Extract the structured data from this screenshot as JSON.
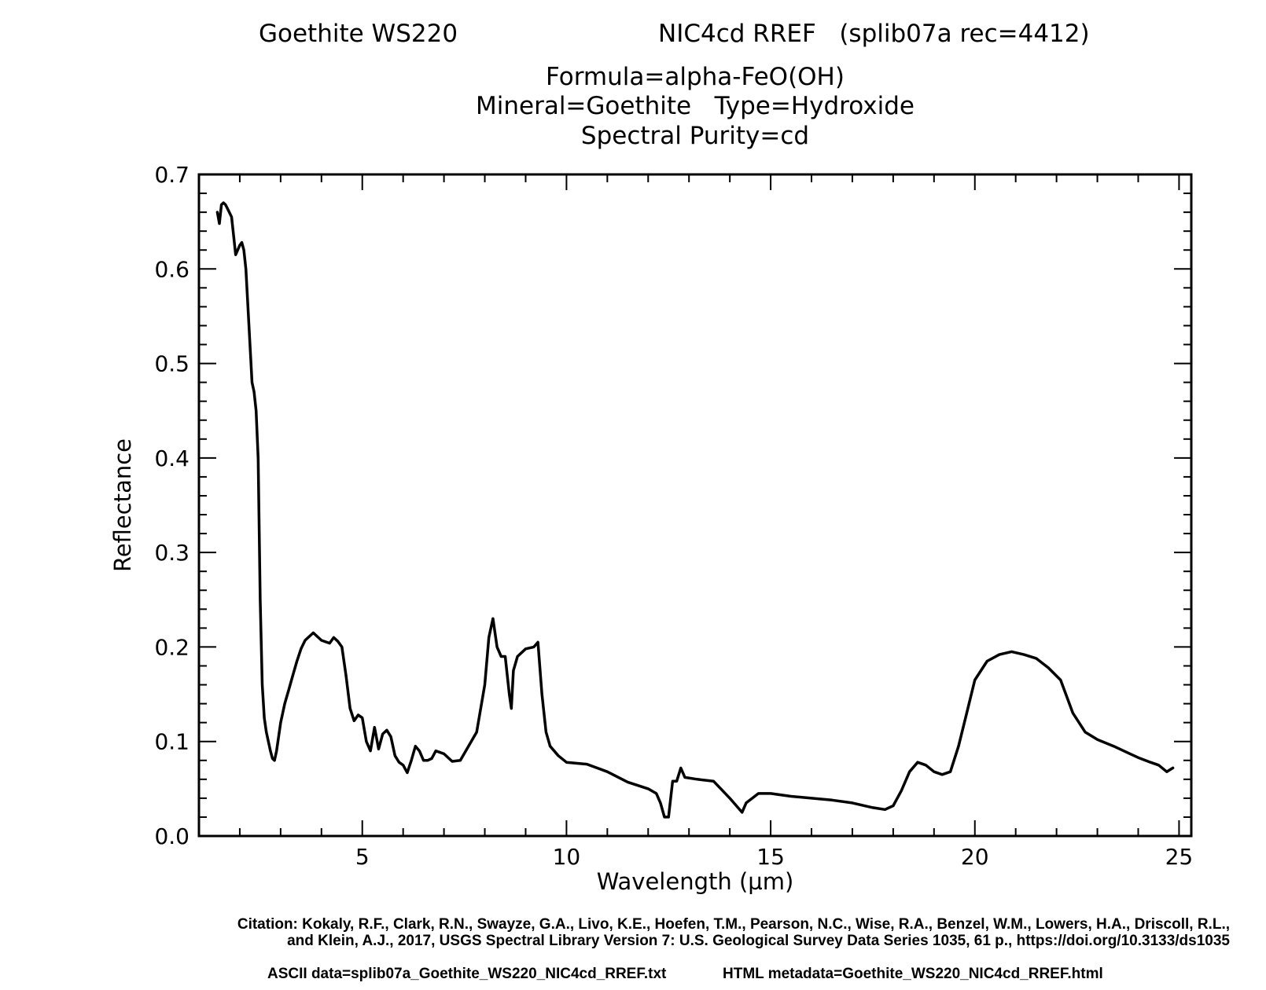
{
  "header": {
    "sample": "Goethite WS220",
    "record": "NIC4cd RREF   (splib07a rec=4412)",
    "formula": "Formula=alpha-FeO(OH)",
    "mineral_type": "Mineral=Goethite   Type=Hydroxide",
    "purity": "Spectral Purity=cd"
  },
  "footer": {
    "citation_line1": "Citation: Kokaly, R.F., Clark, R.N., Swayze, G.A., Livo, K.E., Hoefen, T.M., Pearson, N.C., Wise, R.A., Benzel, W.M., Lowers, H.A., Driscoll, R.L.,",
    "citation_line2": "and Klein, A.J., 2017, USGS Spectral Library Version 7: U.S. Geological Survey Data Series 1035, 61 p., https://doi.org/10.3133/ds1035",
    "ascii_data": "ASCII data=splib07a_Goethite_WS220_NIC4cd_RREF.txt",
    "html_metadata": "HTML metadata=Goethite_WS220_NIC4cd_RREF.html"
  },
  "chart_data": {
    "type": "line",
    "title": "Goethite WS220",
    "xlabel": "Wavelength (µm)",
    "ylabel": "Reflectance",
    "xlim": [
      1,
      25.3
    ],
    "ylim": [
      0.0,
      0.7
    ],
    "xticks": [
      5,
      10,
      15,
      20,
      25
    ],
    "xtick_labels": [
      "5",
      "10",
      "15",
      "20",
      "25"
    ],
    "yticks": [
      0.0,
      0.1,
      0.2,
      0.3,
      0.4,
      0.5,
      0.6,
      0.7
    ],
    "ytick_labels": [
      "0.0",
      "0.1",
      "0.2",
      "0.3",
      "0.4",
      "0.5",
      "0.6",
      "0.7"
    ],
    "line_color": "#000000",
    "series": [
      {
        "name": "Goethite WS220 NIC4cd RREF",
        "x": [
          1.45,
          1.5,
          1.55,
          1.6,
          1.65,
          1.72,
          1.8,
          1.9,
          2.0,
          2.05,
          2.1,
          2.15,
          2.2,
          2.25,
          2.3,
          2.35,
          2.4,
          2.45,
          2.5,
          2.55,
          2.6,
          2.65,
          2.7,
          2.75,
          2.8,
          2.85,
          2.9,
          2.95,
          3.0,
          3.1,
          3.2,
          3.3,
          3.4,
          3.5,
          3.6,
          3.8,
          4.0,
          4.2,
          4.3,
          4.4,
          4.5,
          4.6,
          4.7,
          4.8,
          4.9,
          5.0,
          5.1,
          5.2,
          5.3,
          5.4,
          5.5,
          5.6,
          5.7,
          5.8,
          5.9,
          6.0,
          6.1,
          6.2,
          6.3,
          6.4,
          6.5,
          6.6,
          6.7,
          6.8,
          7.0,
          7.2,
          7.4,
          7.6,
          7.8,
          8.0,
          8.1,
          8.2,
          8.3,
          8.4,
          8.5,
          8.6,
          8.65,
          8.7,
          8.8,
          9.0,
          9.2,
          9.3,
          9.4,
          9.5,
          9.6,
          9.8,
          10.0,
          10.5,
          11.0,
          11.5,
          12.0,
          12.2,
          12.3,
          12.4,
          12.5,
          12.6,
          12.7,
          12.8,
          12.9,
          13.2,
          13.6,
          14.0,
          14.2,
          14.3,
          14.4,
          14.7,
          15.0,
          15.5,
          16.0,
          16.5,
          17.0,
          17.5,
          17.8,
          18.0,
          18.2,
          18.4,
          18.6,
          18.8,
          19.0,
          19.2,
          19.4,
          19.6,
          19.8,
          20.0,
          20.3,
          20.6,
          20.9,
          21.2,
          21.5,
          21.8,
          22.1,
          22.4,
          22.7,
          23.0,
          23.4,
          23.8,
          24.0,
          24.3,
          24.5,
          24.7,
          24.85
        ],
        "y": [
          0.66,
          0.648,
          0.668,
          0.67,
          0.668,
          0.662,
          0.655,
          0.615,
          0.625,
          0.628,
          0.62,
          0.6,
          0.56,
          0.52,
          0.48,
          0.47,
          0.45,
          0.4,
          0.25,
          0.16,
          0.125,
          0.11,
          0.1,
          0.09,
          0.082,
          0.08,
          0.09,
          0.105,
          0.12,
          0.14,
          0.155,
          0.17,
          0.185,
          0.198,
          0.207,
          0.215,
          0.207,
          0.204,
          0.21,
          0.206,
          0.2,
          0.17,
          0.135,
          0.122,
          0.128,
          0.125,
          0.1,
          0.09,
          0.115,
          0.092,
          0.108,
          0.112,
          0.105,
          0.085,
          0.078,
          0.075,
          0.067,
          0.08,
          0.095,
          0.09,
          0.08,
          0.08,
          0.082,
          0.09,
          0.087,
          0.079,
          0.08,
          0.095,
          0.11,
          0.16,
          0.21,
          0.23,
          0.2,
          0.19,
          0.19,
          0.15,
          0.135,
          0.175,
          0.19,
          0.198,
          0.2,
          0.205,
          0.15,
          0.11,
          0.095,
          0.085,
          0.078,
          0.076,
          0.068,
          0.057,
          0.05,
          0.045,
          0.035,
          0.02,
          0.02,
          0.058,
          0.058,
          0.072,
          0.062,
          0.06,
          0.058,
          0.04,
          0.03,
          0.025,
          0.035,
          0.045,
          0.045,
          0.042,
          0.04,
          0.038,
          0.035,
          0.03,
          0.028,
          0.032,
          0.048,
          0.068,
          0.078,
          0.075,
          0.068,
          0.065,
          0.068,
          0.095,
          0.13,
          0.165,
          0.185,
          0.192,
          0.195,
          0.192,
          0.188,
          0.178,
          0.165,
          0.13,
          0.11,
          0.102,
          0.095,
          0.087,
          0.083,
          0.078,
          0.075,
          0.068,
          0.072
        ]
      }
    ]
  }
}
